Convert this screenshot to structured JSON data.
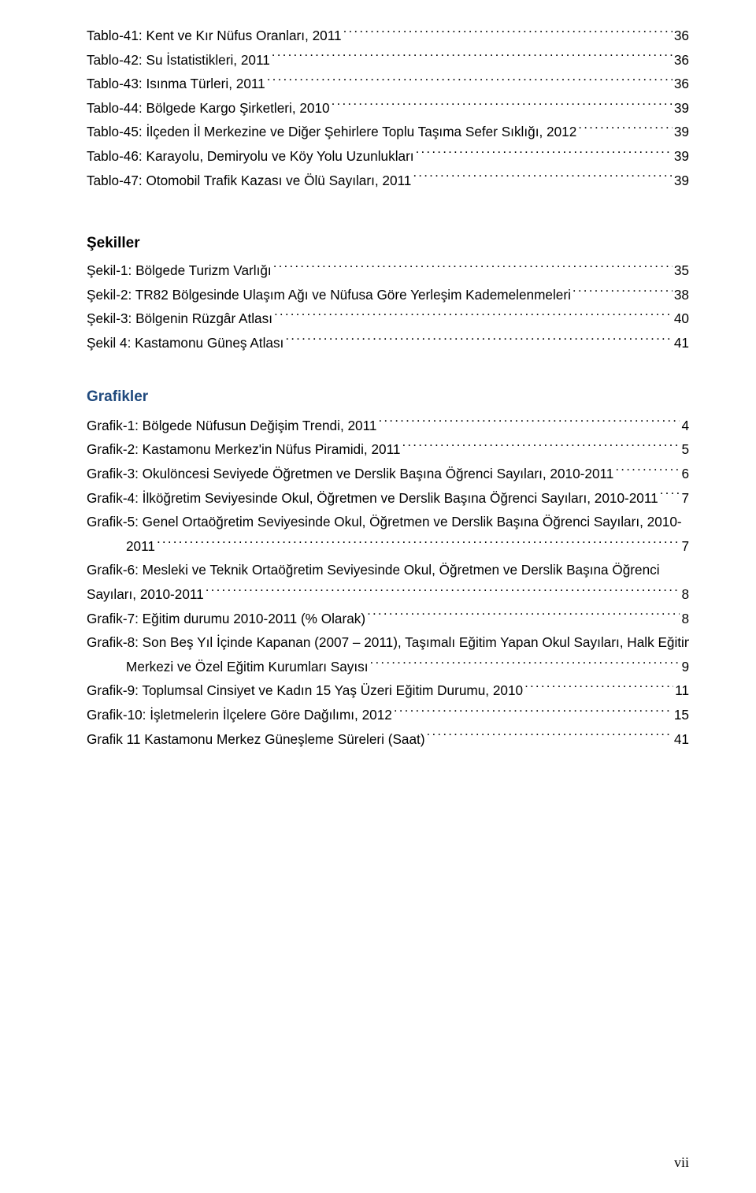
{
  "tables": [
    {
      "label": "Tablo-41: Kent ve Kır Nüfus Oranları, 2011",
      "page": "36"
    },
    {
      "label": "Tablo-42: Su İstatistikleri, 2011",
      "page": "36"
    },
    {
      "label": "Tablo-43: Isınma Türleri, 2011",
      "page": "36"
    },
    {
      "label": "Tablo-44: Bölgede Kargo Şirketleri, 2010",
      "page": "39"
    },
    {
      "label": "Tablo-45: İlçeden İl Merkezine ve Diğer Şehirlere Toplu Taşıma Sefer Sıklığı, 2012",
      "page": "39"
    },
    {
      "label": "Tablo-46: Karayolu, Demiryolu ve Köy Yolu Uzunlukları",
      "page": "39"
    },
    {
      "label": "Tablo-47: Otomobil Trafik Kazası ve Ölü Sayıları, 2011",
      "page": "39"
    }
  ],
  "sekiller_heading": "Şekiller",
  "sekiller": [
    {
      "label": "Şekil-1: Bölgede Turizm Varlığı",
      "page": "35"
    },
    {
      "label": "Şekil-2: TR82 Bölgesinde Ulaşım Ağı ve Nüfusa Göre Yerleşim Kademelenmeleri",
      "page": "38"
    },
    {
      "label": "Şekil-3: Bölgenin Rüzgâr Atlası",
      "page": "40"
    },
    {
      "label": "Şekil 4: Kastamonu Güneş Atlası",
      "page": "41"
    }
  ],
  "grafikler_heading": "Grafikler",
  "grafikler": [
    {
      "lines": [
        "Grafik-1: Bölgede Nüfusun Değişim Trendi, 2011"
      ],
      "page": "4"
    },
    {
      "lines": [
        "Grafik-2: Kastamonu Merkez'in Nüfus Piramidi, 2011"
      ],
      "page": "5"
    },
    {
      "lines": [
        "Grafik-3: Okulöncesi Seviyede Öğretmen ve Derslik Başına Öğrenci Sayıları,  2010-2011"
      ],
      "page": "6"
    },
    {
      "lines": [
        "Grafik-4: İlköğretim Seviyesinde Okul, Öğretmen ve Derslik Başına Öğrenci Sayıları,  2010-2011"
      ],
      "page": "7"
    },
    {
      "lines": [
        "Grafik-5: Genel Ortaöğretim Seviyesinde Okul, Öğretmen ve Derslik Başına Öğrenci Sayıları, 2010-",
        "2011"
      ],
      "page": "7",
      "indentLast": true
    },
    {
      "lines": [
        "Grafik-6: Mesleki ve Teknik Ortaöğretim Seviyesinde Okul, Öğretmen ve Derslik Başına Öğrenci",
        "Sayıları,  2010-2011"
      ],
      "page": "8"
    },
    {
      "lines": [
        "Grafik-7: Eğitim durumu 2010-2011 (% Olarak)"
      ],
      "page": "8"
    },
    {
      "lines": [
        "Grafik-8: Son Beş Yıl İçinde Kapanan (2007 – 2011), Taşımalı Eğitim Yapan Okul Sayıları, Halk Eğitim",
        "Merkezi ve Özel Eğitim Kurumları Sayısı"
      ],
      "page": "9",
      "indentLast": true
    },
    {
      "lines": [
        "Grafik-9: Toplumsal Cinsiyet ve Kadın 15 Yaş Üzeri Eğitim Durumu, 2010"
      ],
      "page": "11"
    },
    {
      "lines": [
        "Grafik-10: İşletmelerin İlçelere Göre Dağılımı, 2012"
      ],
      "page": "15"
    },
    {
      "lines": [
        "Grafik 11 Kastamonu Merkez Güneşleme Süreleri (Saat)"
      ],
      "page": "41"
    }
  ],
  "folio": "vii"
}
